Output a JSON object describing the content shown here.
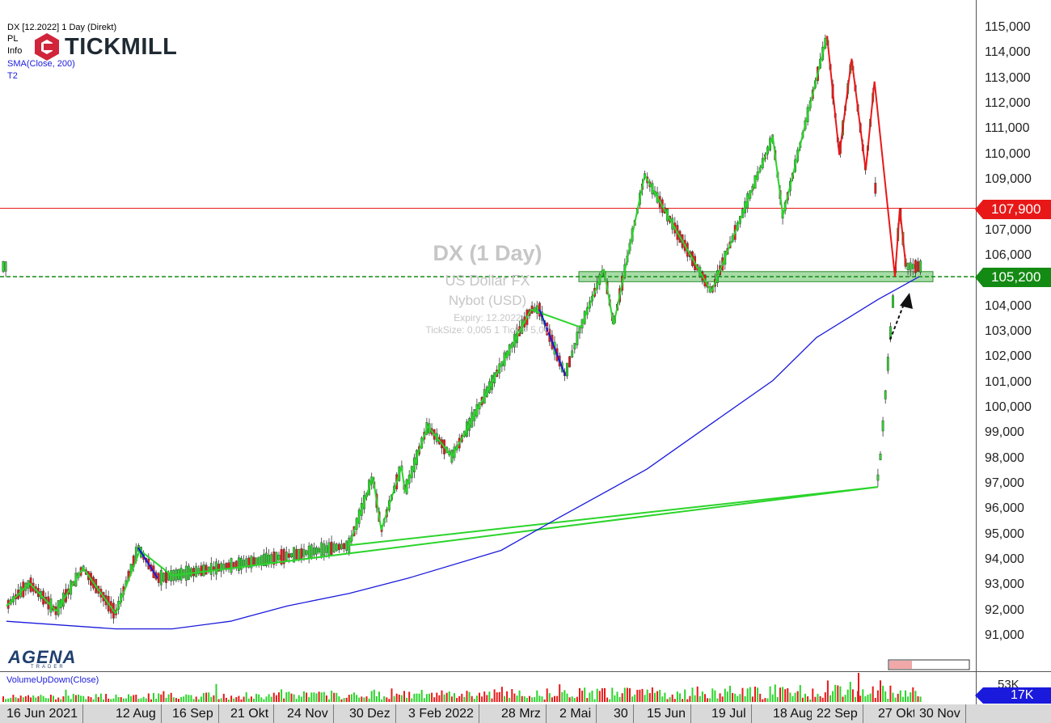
{
  "header": {
    "line1": "DX [12.2022] 1 Day (Direkt)",
    "line2": "PL",
    "line3": "Info",
    "line4": "SMA(Close, 200)",
    "line5": "T2"
  },
  "logo": {
    "brand": "TICKMILL",
    "platform": "AGENA",
    "platform_sub": "TRADER"
  },
  "watermark": {
    "title": "DX (1 Day)",
    "name": "US Dollar FX",
    "exchange": "Nybot  (USD)",
    "expiry": "Expiry: 12.2022",
    "ticksize": "TickSize: 0,005   1 Tick = 5,00"
  },
  "price_axis": {
    "ticks": [
      "115,000",
      "114,000",
      "113,000",
      "112,000",
      "111,000",
      "110,000",
      "109,000",
      "107,000",
      "106,000",
      "104,000",
      "103,000",
      "102,000",
      "101,000",
      "100,000",
      "99,000",
      "98,000",
      "97,000",
      "96,000",
      "95,000",
      "94,000",
      "93,000",
      "92,000",
      "91,000"
    ],
    "resistance_tag": "107,900",
    "support_tag": "105,200"
  },
  "date_axis": [
    "16 Jun 2021",
    "12 Aug",
    "16 Sep",
    "21 Okt",
    "24 Nov",
    "30 Dez",
    "3 Feb 2022",
    "28 Mrz",
    "2 Mai",
    "30",
    "15 Jun",
    "19 Jul",
    "18 Aug",
    "22 Sep",
    "27 Okt",
    "30 Nov"
  ],
  "volume": {
    "title": "VolumeUpDown(Close)",
    "tick": "53K",
    "current_tag": "17K"
  },
  "colors": {
    "up": "#2bd42b",
    "down": "#e81818",
    "sma": "#1a1adc",
    "resistance": "#e81818",
    "support": "#138a13",
    "zone": "#5fbf5f"
  },
  "chart_data": {
    "type": "line",
    "instrument": "DX [12.2022]",
    "ylim": [
      90000,
      115500
    ],
    "resistance_level": 107900,
    "support_level": 105200,
    "support_zone": [
      105000,
      105400
    ],
    "series": [
      {
        "name": "SMA(Close, 200)",
        "points": [
          [
            "16 Jun 2021",
            91600
          ],
          [
            "12 Aug",
            91300
          ],
          [
            "16 Sep",
            91300
          ],
          [
            "21 Okt",
            91600
          ],
          [
            "24 Nov",
            92200
          ],
          [
            "30 Dez",
            92700
          ],
          [
            "3 Feb 2022",
            93300
          ],
          [
            "28 Mrz",
            94400
          ],
          [
            "2 Mai",
            95700
          ],
          [
            "15 Jun",
            97600
          ],
          [
            "19 Jul",
            99400
          ],
          [
            "18 Aug",
            101100
          ],
          [
            "22 Sep",
            102800
          ],
          [
            "27 Okt",
            104300
          ],
          [
            "30 Nov",
            105200
          ]
        ]
      },
      {
        "name": "T2 up",
        "segments": [
          [
            [
              "16 Jun 2021",
              92200
            ],
            [
              "28 Jun 2021",
              93100
            ]
          ],
          [
            [
              "12 Jul 2021",
              92000
            ],
            [
              "26 Jul 2021",
              93700
            ]
          ],
          [
            [
              "12 Aug",
              91900
            ],
            [
              "27 Aug 2021",
              94400
            ]
          ],
          [
            [
              "16 Sep",
              93400
            ],
            [
              "27 Okt",
              96900
            ]
          ],
          [
            [
              "30 Dez",
              94600
            ],
            [
              "13 Jan 2022",
              97300
            ]
          ],
          [
            [
              "18 Jan 2022",
              95200
            ],
            [
              "30 Jan 2022",
              97700
            ]
          ],
          [
            [
              "1 Feb 2022",
              96700
            ],
            [
              "14 Feb 2022",
              99300
            ]
          ],
          [
            [
              "28 Feb 2022",
              98100
            ],
            [
              "15 Apr 2022",
              103900
            ]
          ],
          [
            [
              "13 Mai 2022",
              103200
            ],
            [
              "25 Mai 2022",
              105500
            ]
          ],
          [
            [
              "30 Mai 2022",
              103300
            ],
            [
              "14 Jun 2022",
              109200
            ]
          ],
          [
            [
              "19 Jul",
              104600
            ],
            [
              "18 Aug",
              110700
            ]
          ],
          [
            [
              "26 Aug 2022",
              107600
            ],
            [
              "28 Sep 2022",
              114700
            ]
          ]
        ]
      },
      {
        "name": "T2 down",
        "segments": [
          [
            [
              "26 Aug 2021",
              94500
            ],
            [
              "7 Sep 2021",
              93300
            ]
          ],
          [
            [
              "20 Apr 2022",
              103900
            ],
            [
              "5 Mai 2022",
              101300
            ]
          ],
          [
            [
              "28 Sep 2022",
              114700
            ],
            [
              "5 Okt 2022",
              110000
            ]
          ],
          [
            [
              "12 Okt 2022",
              113800
            ],
            [
              "20 Okt 2022",
              109400
            ]
          ],
          [
            [
              "25 Okt 2022",
              112900
            ],
            [
              "10 Nov 2022",
              105200
            ]
          ],
          [
            [
              "14 Nov 2022",
              107900
            ],
            [
              "19 Nov 2022",
              105600
            ]
          ]
        ]
      }
    ]
  }
}
